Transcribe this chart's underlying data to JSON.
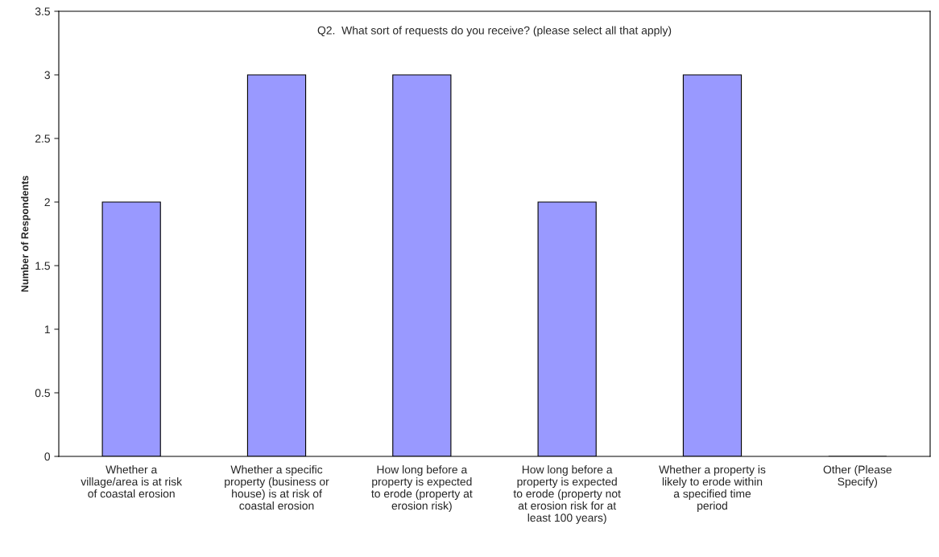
{
  "chart_data": {
    "type": "bar",
    "title": "Q2.  What sort of requests do you receive? (please select all that apply)",
    "ylabel": "Number of Respondents",
    "categories": [
      "Whether a\nvillage/area is at risk\nof coastal erosion",
      "Whether a specific\nproperty (business or\nhouse) is at risk of\ncoastal erosion",
      "How long before a\nproperty is expected\nto erode (property at\nerosion risk)",
      "How long before a\nproperty is expected\nto erode (property not\nat erosion risk for at\nleast 100 years)",
      "Whether a property is\nlikely to erode within\na specified time\nperiod",
      "Other (Please\nSpecify)"
    ],
    "values": [
      2,
      3,
      3,
      2,
      3,
      0
    ],
    "color": "#9999ff",
    "ylim": [
      0,
      3.5
    ],
    "yticks": [
      0,
      0.5,
      1,
      1.5,
      2,
      2.5,
      3,
      3.5
    ],
    "grid": false,
    "legend": false
  }
}
